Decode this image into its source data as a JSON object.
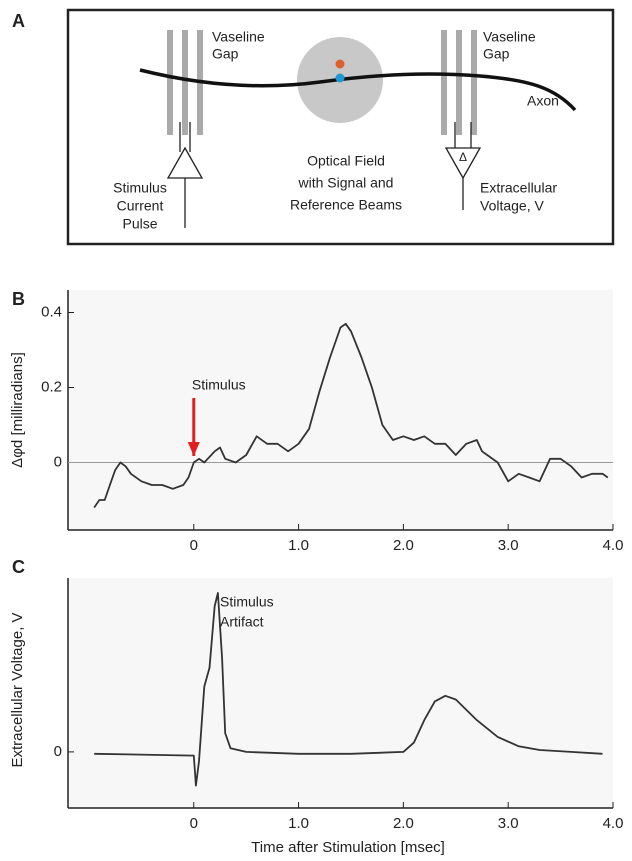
{
  "panel_labels": [
    "A",
    "B",
    "C"
  ],
  "diagram": {
    "left_gap": [
      "Vaseline",
      "Gap"
    ],
    "right_gap": [
      "Vaseline",
      "Gap"
    ],
    "axon": "Axon",
    "optical": [
      "Optical Field",
      "with Signal and",
      "Reference Beams"
    ],
    "stimulus": [
      "Stimulus",
      "Current",
      "Pulse"
    ],
    "extracellular": [
      "Extracellular",
      "Voltage, V"
    ],
    "delta": "Δ"
  },
  "x_label": "Time after Stimulation [msec]",
  "chart_data": [
    {
      "type": "line",
      "y_label": "Δφd [milliradians]",
      "annotation": "Stimulus",
      "annotation_x": 0,
      "xlim": [
        -1.2,
        4.0
      ],
      "xticks": [
        0,
        {
          "value": 1,
          "label": "1.0"
        },
        {
          "value": 2,
          "label": "2.0"
        },
        {
          "value": 3,
          "label": "3.0"
        },
        {
          "value": 4,
          "label": "4.0"
        }
      ],
      "ylim": [
        -0.18,
        0.46
      ],
      "yticks": [
        0,
        0.2,
        0.4
      ],
      "zero_line": true,
      "series": [
        {
          "color": "#333333",
          "x": [
            -0.95,
            -0.9,
            -0.85,
            -0.8,
            -0.75,
            -0.7,
            -0.65,
            -0.6,
            -0.5,
            -0.4,
            -0.3,
            -0.2,
            -0.1,
            -0.05,
            0,
            0.05,
            0.1,
            0.2,
            0.25,
            0.3,
            0.4,
            0.5,
            0.6,
            0.7,
            0.8,
            0.9,
            1.0,
            1.1,
            1.2,
            1.3,
            1.4,
            1.45,
            1.5,
            1.6,
            1.7,
            1.8,
            1.9,
            2.0,
            2.1,
            2.2,
            2.3,
            2.4,
            2.5,
            2.6,
            2.7,
            2.75,
            2.8,
            2.9,
            3.0,
            3.1,
            3.2,
            3.3,
            3.4,
            3.5,
            3.6,
            3.7,
            3.8,
            3.9,
            3.95
          ],
          "values": [
            -0.12,
            -0.1,
            -0.1,
            -0.06,
            -0.02,
            0.0,
            -0.01,
            -0.03,
            -0.05,
            -0.06,
            -0.06,
            -0.07,
            -0.06,
            -0.04,
            0.0,
            0.01,
            0.0,
            0.03,
            0.04,
            0.01,
            0.0,
            0.02,
            0.07,
            0.05,
            0.05,
            0.03,
            0.05,
            0.09,
            0.19,
            0.28,
            0.36,
            0.37,
            0.35,
            0.28,
            0.2,
            0.1,
            0.06,
            0.07,
            0.06,
            0.07,
            0.05,
            0.05,
            0.02,
            0.05,
            0.06,
            0.03,
            0.02,
            0.0,
            -0.05,
            -0.03,
            -0.04,
            -0.05,
            0.01,
            0.01,
            -0.01,
            -0.04,
            -0.03,
            -0.03,
            -0.04
          ]
        }
      ]
    },
    {
      "type": "line",
      "y_label": "Extracellular Voltage, V",
      "annotation": [
        "Stimulus",
        "Artifact"
      ],
      "xlim": [
        -1.2,
        4.0
      ],
      "xticks": [
        0,
        {
          "value": 1,
          "label": "1.0"
        },
        {
          "value": 2,
          "label": "2.0"
        },
        {
          "value": 3,
          "label": "3.0"
        },
        {
          "value": 4,
          "label": "4.0"
        }
      ],
      "ylim": [
        -0.3,
        0.93
      ],
      "yticks": [
        0
      ],
      "series": [
        {
          "color": "#333333",
          "x": [
            -0.95,
            0,
            0.02,
            0.05,
            0.1,
            0.15,
            0.2,
            0.23,
            0.27,
            0.3,
            0.35,
            0.5,
            1.0,
            1.5,
            2.0,
            2.1,
            2.2,
            2.3,
            2.4,
            2.5,
            2.7,
            2.9,
            3.1,
            3.3,
            3.6,
            3.9
          ],
          "values": [
            -0.01,
            -0.02,
            -0.18,
            -0.05,
            0.35,
            0.45,
            0.78,
            0.85,
            0.5,
            0.1,
            0.02,
            0.0,
            -0.01,
            -0.01,
            0.0,
            0.05,
            0.17,
            0.27,
            0.3,
            0.28,
            0.17,
            0.08,
            0.03,
            0.01,
            0.0,
            -0.01
          ]
        }
      ]
    }
  ]
}
